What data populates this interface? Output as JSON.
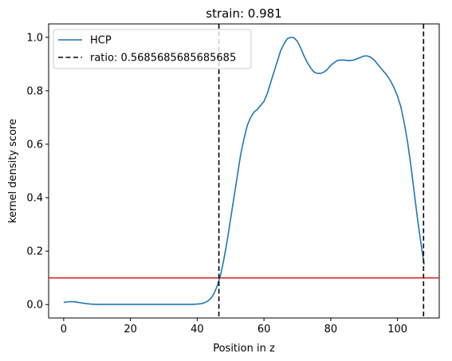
{
  "chart_data": {
    "type": "line",
    "title": "strain: 0.981",
    "xlabel": "Position in z",
    "ylabel": "kernel density score",
    "xlim": [
      -4.5,
      112.5
    ],
    "ylim": [
      -0.05,
      1.05
    ],
    "xticks": [
      0,
      20,
      40,
      60,
      80,
      100
    ],
    "xtick_labels": [
      "0",
      "20",
      "40",
      "60",
      "80",
      "100"
    ],
    "yticks": [
      0.0,
      0.2,
      0.4,
      0.6,
      0.8,
      1.0
    ],
    "ytick_labels": [
      "0.0",
      "0.2",
      "0.4",
      "0.6",
      "0.8",
      "1.0"
    ],
    "grid": false,
    "legend_position": "top-left",
    "series": [
      {
        "name": "HCP",
        "color": "#1f77b4",
        "style": "solid",
        "x": [
          0,
          1,
          2,
          3,
          4,
          5,
          6,
          8,
          10,
          15,
          20,
          25,
          30,
          35,
          38,
          40,
          41,
          42,
          43,
          44,
          45,
          46,
          47,
          48,
          49,
          50,
          51,
          52,
          53,
          54,
          55,
          56,
          57,
          58,
          59,
          60,
          61,
          62,
          63,
          64,
          65,
          66,
          67,
          68,
          69,
          70,
          71,
          72,
          73,
          74,
          75,
          76,
          77,
          78,
          79,
          80,
          81,
          82,
          83,
          84,
          85,
          86,
          87,
          88,
          89,
          90,
          91,
          92,
          93,
          94,
          95,
          96,
          97,
          98,
          99,
          100,
          101,
          102,
          103,
          104,
          105,
          106,
          107,
          108
        ],
        "y": [
          0.008,
          0.01,
          0.011,
          0.011,
          0.009,
          0.007,
          0.005,
          0.002,
          0.001,
          0.001,
          0.001,
          0.001,
          0.001,
          0.001,
          0.001,
          0.002,
          0.003,
          0.006,
          0.012,
          0.022,
          0.04,
          0.07,
          0.11,
          0.17,
          0.24,
          0.32,
          0.4,
          0.48,
          0.56,
          0.62,
          0.67,
          0.7,
          0.72,
          0.73,
          0.745,
          0.76,
          0.79,
          0.83,
          0.87,
          0.91,
          0.95,
          0.975,
          0.995,
          1.0,
          0.998,
          0.985,
          0.96,
          0.93,
          0.905,
          0.885,
          0.87,
          0.865,
          0.865,
          0.87,
          0.88,
          0.895,
          0.905,
          0.913,
          0.915,
          0.915,
          0.913,
          0.913,
          0.915,
          0.92,
          0.925,
          0.93,
          0.93,
          0.925,
          0.915,
          0.9,
          0.885,
          0.87,
          0.855,
          0.835,
          0.81,
          0.78,
          0.74,
          0.68,
          0.61,
          0.52,
          0.42,
          0.32,
          0.23,
          0.15
        ]
      }
    ],
    "vlines": [
      {
        "name": "ratio: 0.5685685685685685",
        "x": [
          46.5,
          107.8
        ],
        "color": "#000000",
        "style": "dashed"
      }
    ],
    "hlines": [
      {
        "y": 0.1,
        "color": "#d62728",
        "style": "solid"
      }
    ]
  }
}
